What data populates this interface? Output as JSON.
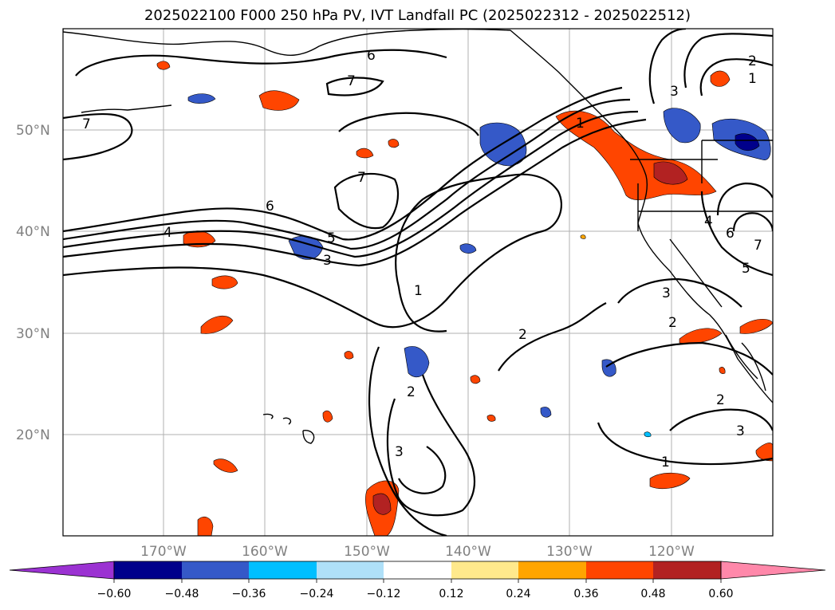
{
  "title": "2025022100 F000 250 hPa PV, IVT Landfall PC (2025022312 - 2025022512)",
  "map": {
    "lon_labels": [
      "170°W",
      "160°W",
      "150°W",
      "140°W",
      "130°W",
      "120°W"
    ],
    "lat_labels": [
      "50°N",
      "40°N",
      "30°N",
      "20°N"
    ],
    "contour_labels": [
      "6",
      "7",
      "7",
      "7",
      "6",
      "4",
      "5",
      "3",
      "1",
      "2",
      "2",
      "3",
      "3",
      "2",
      "1",
      "2",
      "1",
      "3",
      "2",
      "3",
      "1",
      "7",
      "6",
      "5",
      "4"
    ]
  },
  "colorbar": {
    "tick_labels": [
      "−0.60",
      "−0.48",
      "−0.36",
      "−0.24",
      "−0.12",
      "0.12",
      "0.24",
      "0.36",
      "0.48",
      "0.60"
    ],
    "colors": [
      "#9b32d2",
      "#00008b",
      "#3559c8",
      "#00bfff",
      "#afe0f8",
      "#ffffff",
      "#ffe98c",
      "#ffa500",
      "#ff4500",
      "#b22222",
      "#ff88aa"
    ]
  }
}
